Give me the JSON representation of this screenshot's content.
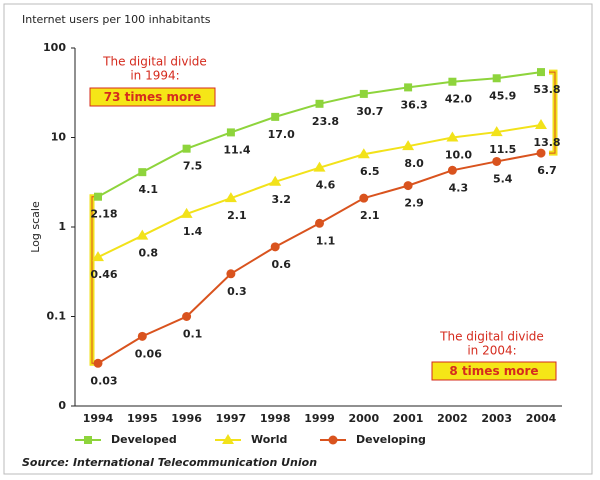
{
  "chart_data": {
    "type": "line",
    "title": "Internet users per 100 inhabitants",
    "y_label": "Log scale",
    "source": "Source: International Telecommunication Union",
    "log_scale": true,
    "categories": [
      "1994",
      "1995",
      "1996",
      "1997",
      "1998",
      "1999",
      "2000",
      "2001",
      "2002",
      "2003",
      "2004"
    ],
    "ylim": [
      0.01,
      100
    ],
    "yticks": [
      {
        "value": 0.01,
        "label": "0"
      },
      0.1,
      1,
      10,
      100
    ],
    "series": [
      {
        "name": "Developed",
        "color": "#8ed43c",
        "marker": "square",
        "values": [
          2.18,
          4.1,
          7.5,
          11.4,
          17.0,
          23.8,
          30.7,
          36.3,
          42.0,
          45.9,
          53.8
        ],
        "value_labels": [
          "2.18",
          "4.1",
          "7.5",
          "11.4",
          "17.0",
          "23.8",
          "30.7",
          "36.3",
          "42.0",
          "45.9",
          "53.8"
        ]
      },
      {
        "name": "World",
        "color": "#f2e21a",
        "marker": "triangle",
        "values": [
          0.46,
          0.8,
          1.4,
          2.1,
          3.2,
          4.6,
          6.5,
          8.0,
          10.0,
          11.5,
          13.8
        ],
        "value_labels": [
          "0.46",
          "0.8",
          "1.4",
          "2.1",
          "3.2",
          "4.6",
          "6.5",
          "8.0",
          "10.0",
          "11.5",
          "13.8"
        ]
      },
      {
        "name": "Developing",
        "color": "#d9531e",
        "marker": "circle",
        "values": [
          0.03,
          0.06,
          0.1,
          0.3,
          0.6,
          1.1,
          2.1,
          2.9,
          4.3,
          5.4,
          6.7
        ],
        "value_labels": [
          "0.03",
          "0.06",
          "0.1",
          "0.3",
          "0.6",
          "1.1",
          "2.1",
          "2.9",
          "4.3",
          "5.4",
          "6.7"
        ]
      }
    ],
    "annotations": [
      {
        "lines": [
          "The digital divide",
          "in 1994:"
        ],
        "highlight": "73 times more"
      },
      {
        "lines": [
          "The digital divide",
          "in 2004:"
        ],
        "highlight": "8 times more"
      }
    ]
  }
}
